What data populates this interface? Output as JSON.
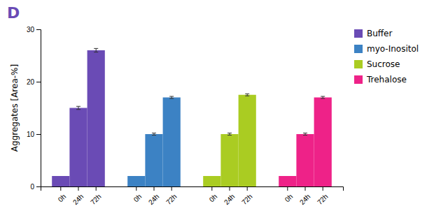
{
  "chart_data": {
    "type": "bar",
    "annotations": [
      {
        "text": "D",
        "color": "#6A4BB5"
      }
    ],
    "y_label": "Aggregates [Area-%]",
    "categories": [
      "0h",
      "24h",
      "72h"
    ],
    "series": [
      {
        "name": "Buffer",
        "color": "#6A4BB5",
        "values": [
          2.0,
          15.0,
          26.0
        ],
        "errors": [
          0.0,
          0.3,
          0.35
        ]
      },
      {
        "name": "myo-Inositol",
        "color": "#3C82C4",
        "values": [
          2.0,
          10.0,
          17.0
        ],
        "errors": [
          0.0,
          0.2,
          0.2
        ]
      },
      {
        "name": "Sucrose",
        "color": "#AACC22",
        "values": [
          2.0,
          10.0,
          17.5
        ],
        "errors": [
          0.0,
          0.2,
          0.2
        ]
      },
      {
        "name": "Trehalose",
        "color": "#EE2288",
        "values": [
          2.0,
          10.0,
          17.0
        ],
        "errors": [
          0.0,
          0.2,
          0.2
        ]
      }
    ],
    "ylim": [
      0,
      30
    ],
    "yticks": [
      0,
      10,
      20,
      30
    ],
    "grid": false,
    "legend": "right"
  }
}
